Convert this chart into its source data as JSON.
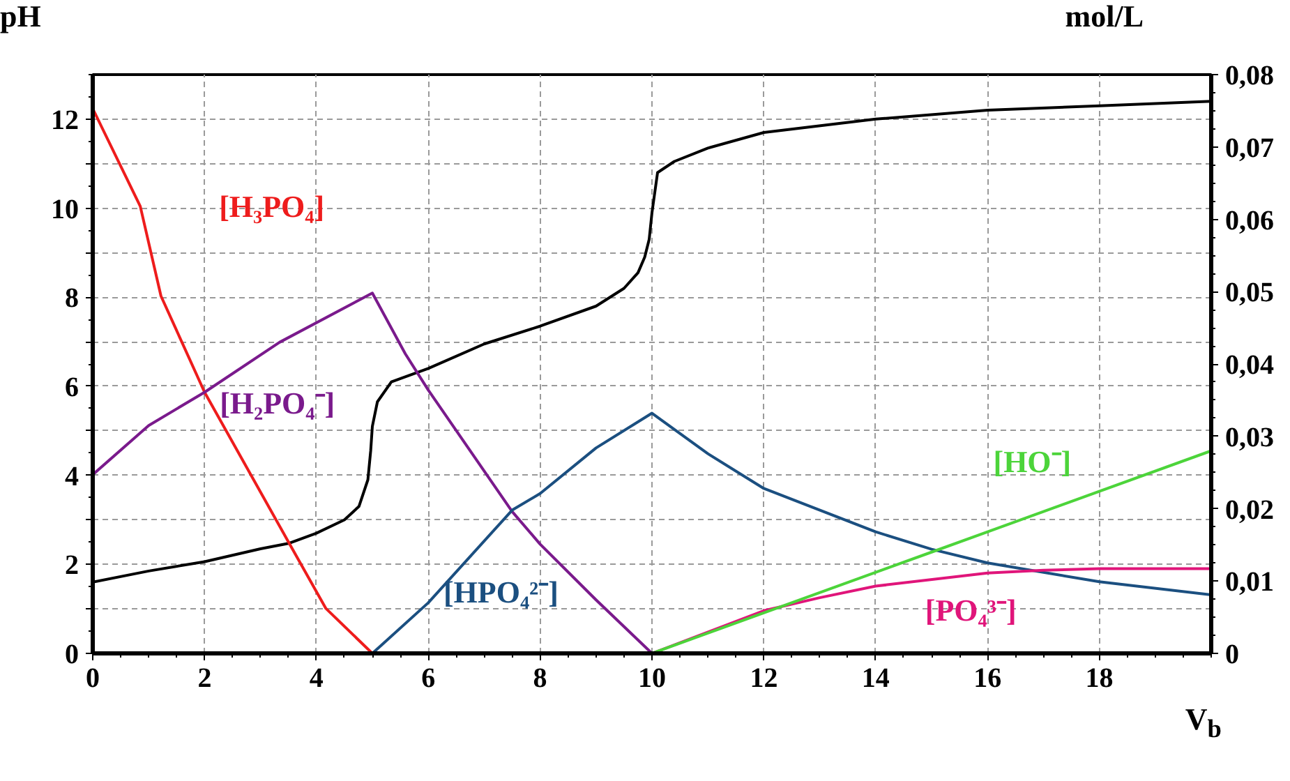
{
  "chart_data": {
    "type": "line",
    "xlabel": "V$_{b}$",
    "ylabel": "pH",
    "y2label": "mol/L",
    "xlim": [
      0,
      20
    ],
    "ylim": [
      0,
      13
    ],
    "y2lim": [
      0,
      0.08
    ],
    "xticks": [
      0,
      2,
      4,
      6,
      8,
      10,
      12,
      14,
      16,
      18
    ],
    "yticks": [
      0,
      {
        "value": 1,
        "label": null
      },
      2,
      {
        "value": 3,
        "label": null
      },
      4,
      {
        "value": 5,
        "label": null
      },
      6,
      {
        "value": 7,
        "label": null
      },
      8,
      {
        "value": 9,
        "label": null
      },
      10,
      {
        "value": 11,
        "label": null
      },
      12
    ],
    "y2ticks": [
      0,
      {
        "value": 0.01,
        "label": "0,01"
      },
      {
        "value": 0.02,
        "label": "0,02"
      },
      {
        "value": 0.03,
        "label": "0,03"
      },
      {
        "value": 0.04,
        "label": "0,04"
      },
      {
        "value": 0.05,
        "label": "0,05"
      },
      {
        "value": 0.06,
        "label": "0,06"
      },
      {
        "value": 0.07,
        "label": "0,07"
      },
      {
        "value": 0.08,
        "label": "0,08"
      }
    ],
    "grid": true,
    "series": [
      {
        "color": "#000000",
        "x": [
          0,
          1,
          2,
          3,
          3.5,
          4,
          4.5,
          4.76,
          4.92,
          4.97,
          5.0,
          5.09,
          5.34,
          6,
          7,
          8,
          9,
          9.5,
          9.75,
          9.87,
          9.95,
          10.0,
          10.1,
          10.4,
          11,
          12,
          14,
          16,
          18,
          20
        ],
        "values": [
          1.6,
          1.85,
          2.06,
          2.35,
          2.47,
          2.7,
          3.0,
          3.3,
          3.9,
          4.55,
          5.1,
          5.65,
          6.1,
          6.4,
          6.95,
          7.35,
          7.8,
          8.2,
          8.55,
          8.9,
          9.3,
          9.9,
          10.8,
          11.05,
          11.35,
          11.7,
          12.0,
          12.2,
          12.3,
          12.4
        ]
      },
      {
        "name": "[H₃PO₄]",
        "color": "#ee1c1c",
        "axis": "y2",
        "x": [
          0,
          0.85,
          1.22,
          2,
          3.5,
          4.17,
          5
        ],
        "values": [
          0.0753,
          0.0618,
          0.0494,
          0.0361,
          0.0154,
          0.0062,
          0
        ]
      },
      {
        "name": "[H₂PO₄⁻]",
        "color": "#7a1a8c",
        "axis": "y2",
        "x": [
          0,
          1,
          2,
          3.34,
          5,
          5.59,
          6,
          7.5,
          8,
          9,
          10
        ],
        "values": [
          0.0247,
          0.0315,
          0.0361,
          0.043,
          0.0498,
          0.0414,
          0.0364,
          0.0196,
          0.0151,
          0.0074,
          0
        ]
      },
      {
        "name": "[HPO₄²⁻]",
        "color": "#1b4f80",
        "axis": "y2",
        "x": [
          5,
          6,
          7.5,
          8,
          9,
          10,
          11,
          12,
          14,
          15,
          16,
          18,
          20
        ],
        "values": [
          0,
          0.007,
          0.0198,
          0.0221,
          0.0284,
          0.0332,
          0.0276,
          0.0228,
          0.0168,
          0.0144,
          0.0125,
          0.0099,
          0.0081
        ]
      },
      {
        "name": "[PO₄³⁻]",
        "color": "#e0157a",
        "axis": "y2",
        "x": [
          10,
          12,
          13,
          14,
          16,
          17,
          18,
          20
        ],
        "values": [
          0,
          0.0059,
          0.0077,
          0.0093,
          0.0111,
          0.0115,
          0.0117,
          0.0117
        ]
      },
      {
        "name": "[HO⁻]",
        "color": "#4cd43a",
        "axis": "y2",
        "x": [
          10,
          15,
          20
        ],
        "values": [
          0,
          0.014,
          0.028
        ]
      }
    ]
  }
}
